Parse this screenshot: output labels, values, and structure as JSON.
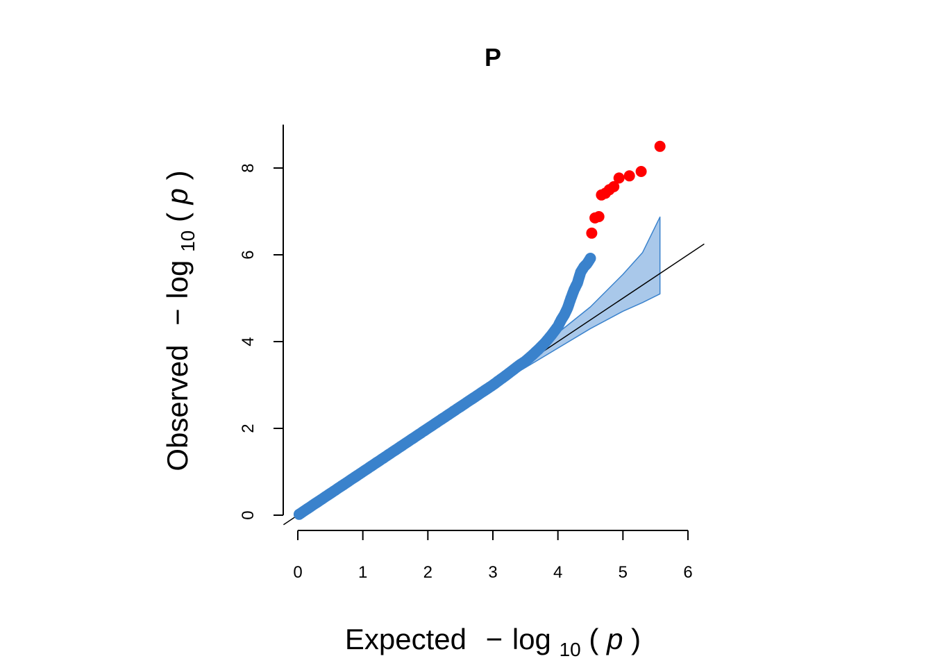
{
  "chart_data": {
    "type": "scatter",
    "title": "P",
    "xlabel": {
      "prefix": "Expected",
      "minus": "−",
      "log": "log",
      "sub": "10",
      "open": "(",
      "var": "p",
      "close": ")"
    },
    "ylabel": {
      "prefix": "Observed",
      "minus": "−",
      "log": "log",
      "sub": "10",
      "open": "(",
      "var": "p",
      "close": ")"
    },
    "xlim": [
      0,
      6
    ],
    "ylim": [
      0,
      9
    ],
    "x_ticks": [
      0,
      1,
      2,
      3,
      4,
      5,
      6
    ],
    "y_ticks": [
      0,
      2,
      4,
      6,
      8
    ],
    "grid": false,
    "legend": "none",
    "reference_line": {
      "slope": 1,
      "intercept": 0
    },
    "colors": {
      "points": "#3a82cc",
      "significant": "#ff0000",
      "band_fill": "#a9c8ea",
      "band_stroke": "#3a82cc",
      "line": "#000000"
    },
    "band": {
      "x": [
        3.0,
        3.5,
        4.0,
        4.5,
        5.0,
        5.3,
        5.57
      ],
      "lower": [
        2.95,
        3.4,
        3.85,
        4.3,
        4.7,
        4.9,
        5.1
      ],
      "upper": [
        3.05,
        3.6,
        4.2,
        4.8,
        5.55,
        6.05,
        6.87
      ]
    },
    "series": [
      {
        "values_x": [
          0.02,
          0.3,
          0.6,
          1.0,
          1.5,
          2.0,
          2.5,
          2.9,
          3.0,
          3.2,
          3.4,
          3.5,
          3.6,
          3.7,
          3.8,
          3.9,
          4.0,
          4.05,
          4.1,
          4.15,
          4.2,
          4.25,
          4.3,
          4.35,
          4.4,
          4.45,
          4.5
        ],
        "values_y": [
          0.02,
          0.3,
          0.6,
          1.0,
          1.5,
          2.0,
          2.5,
          2.9,
          3.0,
          3.22,
          3.45,
          3.55,
          3.68,
          3.82,
          3.97,
          4.15,
          4.35,
          4.5,
          4.62,
          4.78,
          5.0,
          5.2,
          5.35,
          5.6,
          5.72,
          5.8,
          5.92
        ]
      },
      {
        "values_x": [
          4.52,
          4.57,
          4.63,
          4.67,
          4.73,
          4.79,
          4.86,
          4.94,
          5.1,
          5.28,
          5.57
        ],
        "values_y": [
          6.5,
          6.85,
          6.88,
          7.38,
          7.42,
          7.5,
          7.57,
          7.77,
          7.82,
          7.92,
          8.5
        ]
      }
    ]
  }
}
